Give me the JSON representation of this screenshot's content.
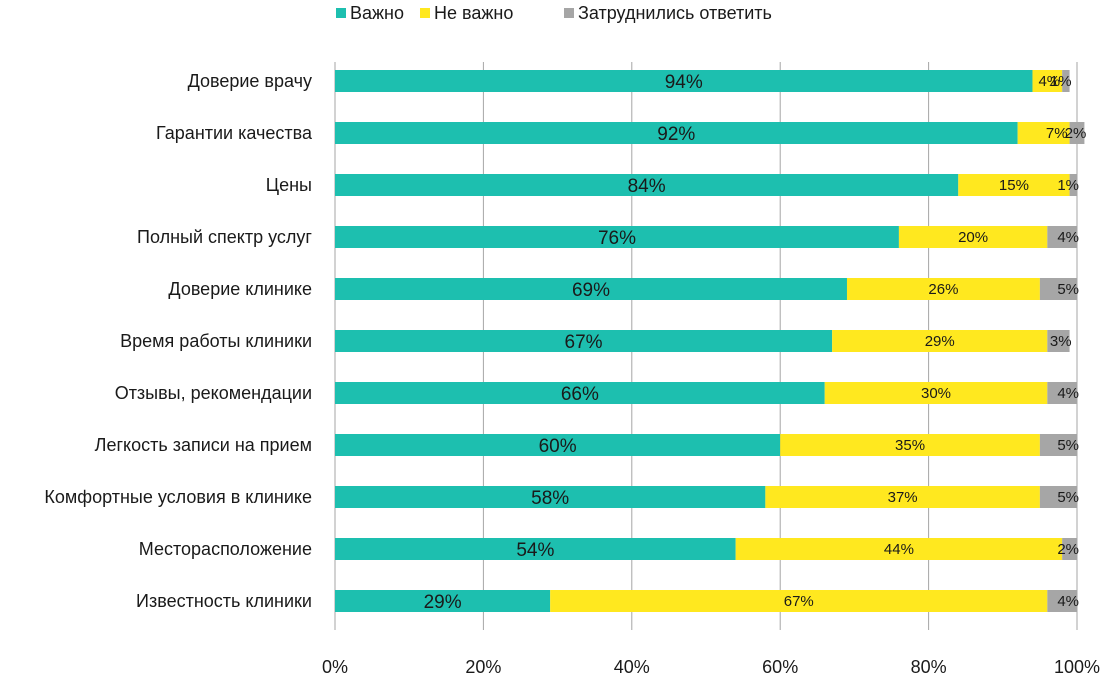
{
  "chart_data": {
    "type": "bar",
    "orientation": "horizontal",
    "stacked": "percent",
    "categories": [
      "Доверие врачу",
      "Гарантии качества",
      "Цены",
      "Полный спектр услуг",
      "Доверие клинике",
      "Время работы клиники",
      "Отзывы, рекомендации",
      "Легкость записи на прием",
      "Комфортные условия в клинике",
      "Месторасположение",
      "Известность клиники"
    ],
    "series": [
      {
        "name": "Важно",
        "color": "#1dbfaf",
        "values": [
          94,
          92,
          84,
          76,
          69,
          67,
          66,
          60,
          58,
          54,
          29
        ],
        "labels": [
          "94%",
          "92%",
          "84%",
          "76%",
          "69%",
          "67%",
          "66%",
          "60%",
          "58%",
          "54%",
          "29%"
        ]
      },
      {
        "name": "Не важно",
        "color": "#ffe81f",
        "values": [
          4,
          7,
          15,
          20,
          26,
          29,
          30,
          35,
          37,
          44,
          67
        ],
        "labels": [
          "4%",
          "7%",
          "15%",
          "20%",
          "26%",
          "29%",
          "30%",
          "35%",
          "37%",
          "44%",
          "67%"
        ]
      },
      {
        "name": "Затруднились ответить",
        "color": "#a6a6a6",
        "values": [
          1,
          2,
          1,
          4,
          5,
          3,
          4,
          5,
          5,
          2,
          4
        ],
        "labels": [
          "1%",
          "2%",
          "1%",
          "4%",
          "5%",
          "3%",
          "4%",
          "5%",
          "5%",
          "2%",
          "4%"
        ]
      }
    ],
    "x_ticks": [
      "0%",
      "20%",
      "40%",
      "60%",
      "80%",
      "100%"
    ],
    "xlim": [
      0,
      100
    ],
    "title": "",
    "xlabel": "",
    "ylabel": "",
    "grid": true,
    "gridline_color": "#a6a6a6",
    "legend_position": "top"
  }
}
